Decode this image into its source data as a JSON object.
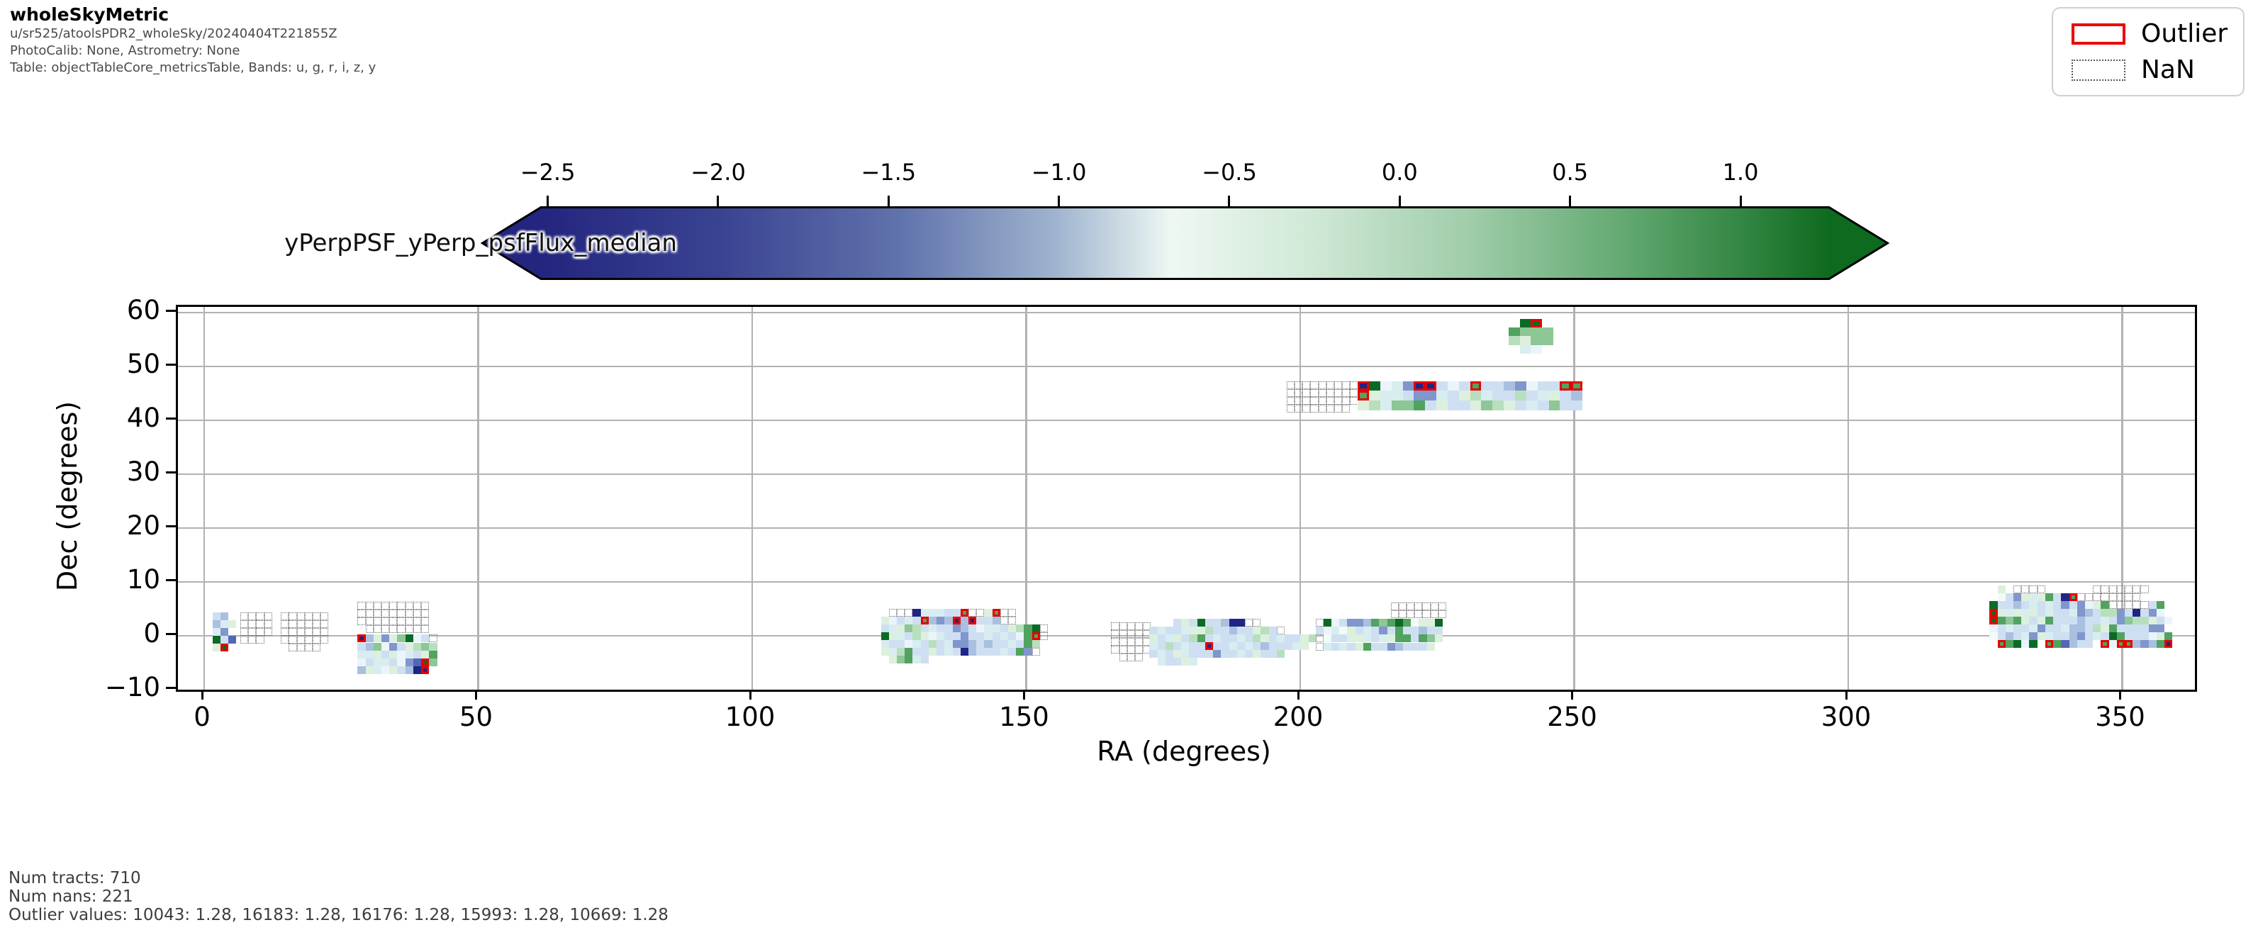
{
  "header": {
    "title": "wholeSkyMetric",
    "line1": "u/sr525/atoolsPDR2_wholeSky/20240404T221855Z",
    "line2": "PhotoCalib: None, Astrometry: None",
    "line3": "Table: objectTableCore_metricsTable, Bands: u, g, r, i, z, y"
  },
  "legend": {
    "items": [
      {
        "label": "Outlier",
        "style": "outlier",
        "color": "#ed0000"
      },
      {
        "label": "NaN",
        "style": "nan"
      }
    ]
  },
  "footer": {
    "line1": "Num tracts: 710",
    "line2": "Num nans: 221",
    "line3": "Outlier values: 10043: 1.28, 16183: 1.28, 16176: 1.28, 15993: 1.28, 10669: 1.28"
  },
  "chart_data": {
    "type": "heatmap",
    "title": "wholeSkyMetric",
    "xlabel": "RA (degrees)",
    "ylabel": "Dec (degrees)",
    "xlim": [
      -5,
      363
    ],
    "ylim": [
      -10,
      61
    ],
    "grid": true,
    "x_ticks": [
      {
        "v": 0,
        "label": "0"
      },
      {
        "v": 50,
        "label": "50"
      },
      {
        "v": 100,
        "label": "100"
      },
      {
        "v": 150,
        "label": "150"
      },
      {
        "v": 200,
        "label": "200"
      },
      {
        "v": 250,
        "label": "250"
      },
      {
        "v": 300,
        "label": "300"
      },
      {
        "v": 350,
        "label": "350"
      }
    ],
    "y_ticks": [
      {
        "v": 60,
        "label": "60"
      },
      {
        "v": 50,
        "label": "50"
      },
      {
        "v": 40,
        "label": "40"
      },
      {
        "v": 30,
        "label": "30"
      },
      {
        "v": 20,
        "label": "20"
      },
      {
        "v": 10,
        "label": "10"
      },
      {
        "v": 0,
        "label": "0"
      },
      {
        "v": -10,
        "label": "−10"
      }
    ],
    "colorbar": {
      "label": "yPerpPSF_yPerp_psfFlux_median",
      "vmin": -2.52,
      "vmax": 1.26,
      "extend": "both",
      "ticks": [
        {
          "v": -2.5,
          "label": "−2.5"
        },
        {
          "v": -2.0,
          "label": "−2.0"
        },
        {
          "v": -1.5,
          "label": "−1.5"
        },
        {
          "v": -1.0,
          "label": "−1.0"
        },
        {
          "v": -0.5,
          "label": "−0.5"
        },
        {
          "v": 0.0,
          "label": "0.0"
        },
        {
          "v": 0.5,
          "label": "0.5"
        },
        {
          "v": 1.0,
          "label": "1.0"
        }
      ],
      "gradient": [
        {
          "pos": 0.0,
          "color": "#23257e"
        },
        {
          "pos": 0.14,
          "color": "#3a4392"
        },
        {
          "pos": 0.28,
          "color": "#6173ac"
        },
        {
          "pos": 0.4,
          "color": "#9fb4cf"
        },
        {
          "pos": 0.49,
          "color": "#eef8f3"
        },
        {
          "pos": 0.6,
          "color": "#cfe8d5"
        },
        {
          "pos": 0.72,
          "color": "#a0cdaa"
        },
        {
          "pos": 0.84,
          "color": "#63a971"
        },
        {
          "pos": 0.94,
          "color": "#2f8340"
        },
        {
          "pos": 1.0,
          "color": "#0e6a1e"
        }
      ]
    },
    "cell_legend": {
      "n": "NaN tract (dotted outline)",
      "uppercase": "outlier tract (red outline)",
      ".": "empty"
    },
    "palette": {
      "a": "#ecf4fb",
      "b": "#cfdff2",
      "c": "#a9c0e0",
      "d": "#8096cc",
      "e": "#5566b4",
      "f": "#1f2585",
      "t": "#d8edf0",
      "w": "#f3fbf7",
      "g": "#ddf0dd",
      "h": "#b8dfbd",
      "i": "#8cc795",
      "j": "#51a35f",
      "k": "#0b6b26"
    },
    "outlier_color": "#e60000",
    "clusters": [
      {
        "name": "cluster-ra0",
        "ra0": 1.5,
        "dec0": 4.3,
        "rows": [
          "bc.",
          "ctg",
          "td.",
          "kbe",
          "gK."
        ]
      },
      {
        "name": "nan-block-ra8",
        "ra0": 6.6,
        "dec0": 4.3,
        "rows": [
          "nnnn",
          "nnnn",
          "nnnn",
          "nnn."
        ]
      },
      {
        "name": "nan-block-ra14",
        "ra0": 14.0,
        "dec0": 4.3,
        "rows": [
          "nnnnnn",
          "nnnnnn",
          "nnnnnn",
          "nnnnnn",
          ".nnnn."
        ]
      },
      {
        "name": "nan-block-ra28",
        "ra0": 28.0,
        "dec0": 6.3,
        "rows": [
          "nnnnnnnnn",
          "nnnnnnnnn",
          "nnnnnnnnn",
          ".nnnnnnnn"
        ]
      },
      {
        "name": "cluster-ra28",
        "ra0": 28.0,
        "dec0": 0.2,
        "rows": [
          "Fcgdgikabn",
          "bciadbghih",
          "ttgbgatbgj",
          "abttbadeKi",
          "cgtagbcfF."
        ]
      },
      {
        "name": "cluster-ra124",
        "ra0": 123.5,
        "dec0": 5.0,
        "rows": [
          ".nnnftttbbJnngJnn........",
          "gabtbJcdcFcFbbcnn........",
          "btgihbtbbdcbattbghjkn....",
          "kgtbhgatbbdbbtbtbajJn....",
          "tbbatbhbtddcbcbbtbjh.....",
          "gthjbbgbtbfcbbbtbjdn.....",
          ".gijtb..................."
        ]
      },
      {
        "name": "nan-block-ra165",
        "ra0": 165.5,
        "dec0": 2.5,
        "rows": [
          "nnnnn",
          "nnnnn",
          "nnnnn",
          "nnnnn",
          ".nnn."
        ]
      },
      {
        "name": "cluster-ra173",
        "ra0": 172.5,
        "dec0": 3.2,
        "rows": [
          "...bgbkbbcffnn.......",
          "btbbtgghbbcbbghbn....",
          "gbtgbhjbtbbtbhgbtbbgh",
          "tbhbtbbFbbtbtbcbbbtg.",
          "btbgtbbbdbbtbgbbh....",
          ".tbbgt..............."
        ]
      },
      {
        "name": "nan-block-ra216",
        "ra0": 216.5,
        "dec0": 6.2,
        "rows": [
          "nnnnnnn",
          "nnnnnnn"
        ]
      },
      {
        "name": "cluster-ra203",
        "ra0": 202.8,
        "dec0": 3.1,
        "rows": [
          "nkabddcjijkjwggk",
          "batwgbtbdbjbbcbb",
          "nwbbggtbtgjjbjig",
          "ntbtbgjbbdcbbbg."
        ]
      },
      {
        "name": "nan-block-ra197-dec45",
        "ra0": 197.5,
        "dec0": 47.3,
        "rows": [
          "nnnnnnnnn",
          "nnnnnnnnn",
          "nnnnnnnnn",
          "nnnnnnnn."
        ]
      },
      {
        "name": "band-ra210-dec45",
        "ra0": 210.5,
        "dec0": 47.3,
        "cw": 2.05,
        "ch": 1.8,
        "rows": [
          "FkatdFFbabJbbcdabbJJ",
          "Jgttbddtbghtbbhbtgbc",
          "ghtiijbgbbgihgbtbibb"
        ]
      },
      {
        "name": "cluster-ra238-dec56",
        "ra0": 238.0,
        "dec0": 58.8,
        "cw": 2.05,
        "ch": 1.6,
        "rows": [
          ".kK.",
          "jiii",
          "hgii",
          ".ta."
        ]
      },
      {
        "name": "cluster-ra326",
        "ra0": 325.8,
        "dec0": 9.3,
        "rows": [
          ".g.nnnn......nnnnnnn...",
          ".wbdgtgjbfJnnnnnnnn....",
          "kbbcbtbtbdbdagjnnnnnbj.",
          "Kgtgtgbtbbtdcbhhdbfbda.",
          "Kjijgbgjbbbcbbtbdihhgba",
          "abtbbtdbbtccbhgjbbbbdd.",
          "wbcbtdgtbbcdbtbkjbbbagj",
          ".Jjkak.Jjecbb.JaJJcdcjF"
        ]
      }
    ]
  }
}
